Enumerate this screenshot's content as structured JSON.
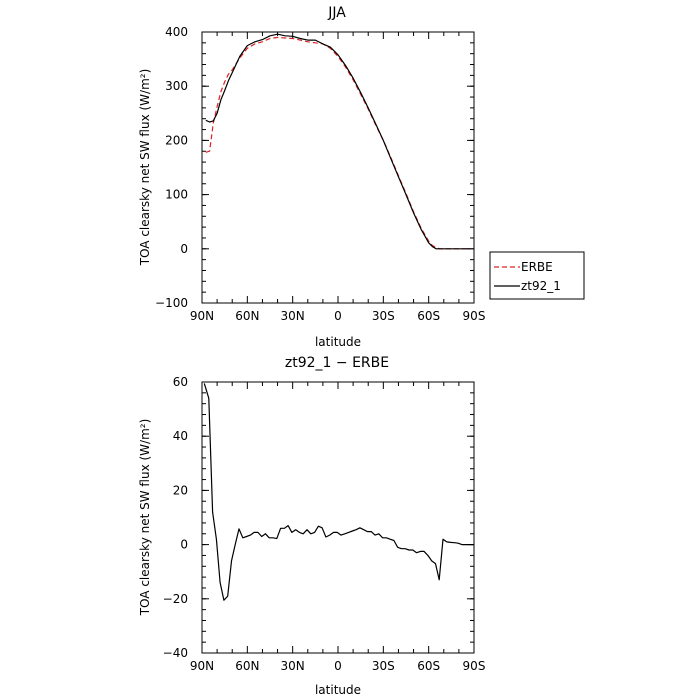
{
  "chart_data": [
    {
      "type": "line",
      "title": "JJA",
      "xlabel": "latitude",
      "ylabel": "TOA clearsky net SW flux (W/m²)",
      "ylim": [
        -100,
        400
      ],
      "xlim": [
        90,
        -90
      ],
      "x_ticks": [
        90,
        60,
        30,
        0,
        -30,
        -60,
        -90
      ],
      "x_tick_labels": [
        "90N",
        "60N",
        "30N",
        "0",
        "30S",
        "60S",
        "90S"
      ],
      "y_ticks": [
        -100,
        0,
        100,
        200,
        300,
        400
      ],
      "y_tick_labels": [
        "−100",
        "0",
        "100",
        "200",
        "300",
        "400"
      ],
      "legend": "right",
      "series": [
        {
          "name": "ERBE",
          "color": "#e02020",
          "dash": true,
          "x": [
            87.5,
            85,
            82.5,
            80,
            77.5,
            75,
            72.5,
            70,
            65,
            60,
            55,
            50,
            45,
            40,
            35,
            30,
            25,
            20,
            15,
            10,
            5,
            0,
            -5,
            -10,
            -15,
            -20,
            -25,
            -30,
            -35,
            -40,
            -45,
            -50,
            -55,
            -60,
            -62.5,
            -65,
            -67.5,
            -70,
            -75,
            -80,
            -85,
            -87.5
          ],
          "y": [
            178,
            180,
            232,
            262,
            290,
            308,
            322,
            330,
            352,
            370,
            378,
            382,
            388,
            390,
            389,
            388,
            385,
            382,
            380,
            378,
            370,
            355,
            335,
            312,
            285,
            258,
            228,
            200,
            168,
            135,
            102,
            68,
            38,
            14,
            6,
            2,
            0,
            0,
            0,
            0,
            0,
            0
          ]
        },
        {
          "name": "zt92_1",
          "color": "#000000",
          "dash": false,
          "x": [
            87.5,
            85,
            82.5,
            80,
            77.5,
            75,
            72.5,
            70,
            65,
            60,
            55,
            50,
            45,
            40,
            35,
            30,
            25,
            20,
            15,
            10,
            5,
            0,
            -5,
            -10,
            -15,
            -20,
            -25,
            -30,
            -35,
            -40,
            -45,
            -50,
            -55,
            -60,
            -62.5,
            -65,
            -67.5,
            -70,
            -75,
            -80,
            -85,
            -87.5
          ],
          "y": [
            237,
            234,
            236,
            250,
            275,
            292,
            310,
            325,
            355,
            375,
            382,
            386,
            393,
            396,
            393,
            392,
            388,
            385,
            385,
            378,
            372,
            358,
            338,
            315,
            288,
            260,
            230,
            200,
            166,
            133,
            100,
            66,
            36,
            11,
            4,
            0,
            0,
            0,
            0,
            0,
            0,
            0
          ]
        }
      ]
    },
    {
      "type": "line",
      "title": "zt92_1 − ERBE",
      "xlabel": "latitude",
      "ylabel": "TOA clearsky net SW flux (W/m²)",
      "ylim": [
        -40,
        60
      ],
      "xlim": [
        90,
        -90
      ],
      "x_ticks": [
        90,
        60,
        30,
        0,
        -30,
        -60,
        -90
      ],
      "x_tick_labels": [
        "90N",
        "60N",
        "30N",
        "0",
        "30S",
        "60S",
        "90S"
      ],
      "y_ticks": [
        -40,
        -20,
        0,
        20,
        40,
        60
      ],
      "y_tick_labels": [
        "−40",
        "−20",
        "0",
        "20",
        "40",
        "60"
      ],
      "series": [
        {
          "color": "#000000",
          "dash": false,
          "x": [
            88.5,
            85.5,
            83,
            80.5,
            78,
            75.5,
            73,
            70.5,
            68,
            65.5,
            63,
            60.5,
            58,
            55.5,
            53,
            50.5,
            48,
            45.5,
            43,
            40.5,
            38,
            35.5,
            33,
            30.5,
            28,
            25.5,
            23,
            20.5,
            18,
            15.5,
            13,
            10.5,
            8,
            5.5,
            3,
            0.5,
            -2,
            -4.5,
            -7,
            -9.5,
            -12,
            -14.5,
            -17,
            -19.5,
            -22,
            -24.5,
            -27,
            -29.5,
            -32,
            -34.5,
            -37,
            -39.5,
            -42,
            -44.5,
            -47,
            -49.5,
            -52,
            -54.5,
            -57,
            -59.5,
            -62,
            -64.5,
            -67,
            -69.5,
            -72,
            -74.5,
            -77,
            -79.5,
            -82,
            -84.5,
            -87,
            -89.5
          ],
          "y": [
            59.5,
            54,
            12,
            2,
            -14,
            -20.5,
            -19,
            -6,
            0,
            5.8,
            2.5,
            3,
            3.5,
            4.5,
            4.5,
            3,
            4,
            2.5,
            2.5,
            2.2,
            6,
            6,
            7,
            4.5,
            5.5,
            4.5,
            4,
            5.5,
            4,
            4.5,
            6.8,
            6.2,
            2.8,
            3.5,
            4.5,
            4.5,
            3.5,
            4,
            4.5,
            5,
            5.5,
            6.2,
            5.5,
            4.8,
            4.8,
            3.5,
            4,
            2.5,
            2.5,
            2,
            1.5,
            -1,
            -1.5,
            -1.5,
            -2,
            -2,
            -3,
            -2.5,
            -2.5,
            -4,
            -6,
            -7,
            -13,
            2,
            1,
            0.8,
            0.7,
            0.5,
            0,
            0,
            0,
            0
          ]
        }
      ]
    }
  ]
}
